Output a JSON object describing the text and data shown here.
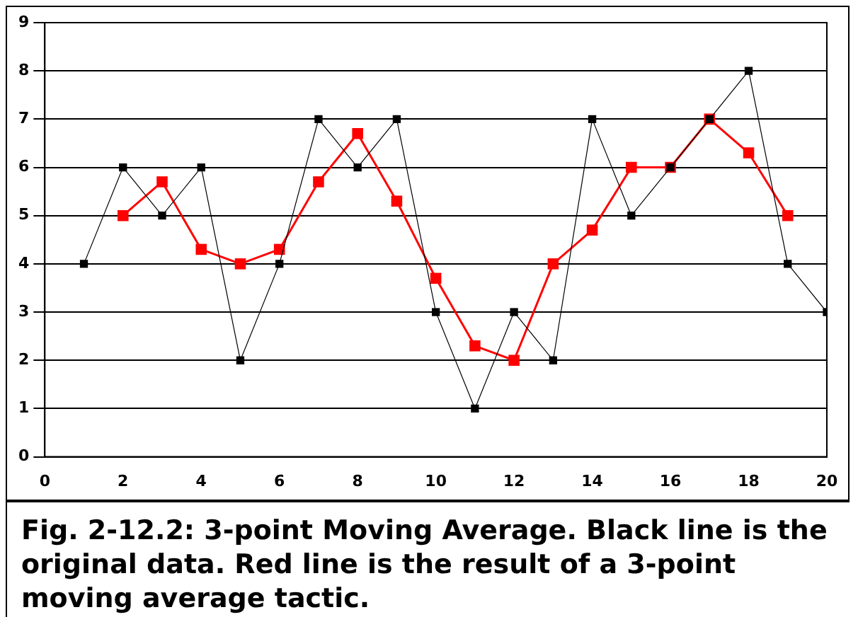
{
  "chart_data": {
    "type": "line",
    "x": [
      1,
      2,
      3,
      4,
      5,
      6,
      7,
      8,
      9,
      10,
      11,
      12,
      13,
      14,
      15,
      16,
      17,
      18,
      19,
      20
    ],
    "series": [
      {
        "color": "#000000",
        "values": [
          4,
          6,
          5,
          6,
          2,
          4,
          7,
          6,
          7,
          3,
          1,
          3,
          2,
          7,
          5,
          6,
          7,
          8,
          4,
          3
        ]
      },
      {
        "color": "#ff0000",
        "values": [
          null,
          5,
          5.7,
          4.3,
          4,
          4.3,
          5.7,
          6.7,
          5.3,
          3.7,
          2.3,
          2,
          4,
          4.7,
          6,
          6,
          7,
          6.3,
          5,
          null
        ]
      }
    ],
    "xlim": [
      0,
      20
    ],
    "xticks": [
      0,
      2,
      4,
      6,
      8,
      10,
      12,
      14,
      16,
      18,
      20
    ],
    "ylim": [
      0,
      9
    ],
    "yticks": [
      0,
      1,
      2,
      3,
      4,
      5,
      6,
      7,
      8,
      9
    ],
    "grid": "y",
    "legend": false,
    "marker": "square",
    "line_style": "solid",
    "annotations": [
      "Fig. 2-12.2: 3-point Moving Average. Black line is the original data. Red line is the result of a 3-point moving average tactic."
    ]
  }
}
